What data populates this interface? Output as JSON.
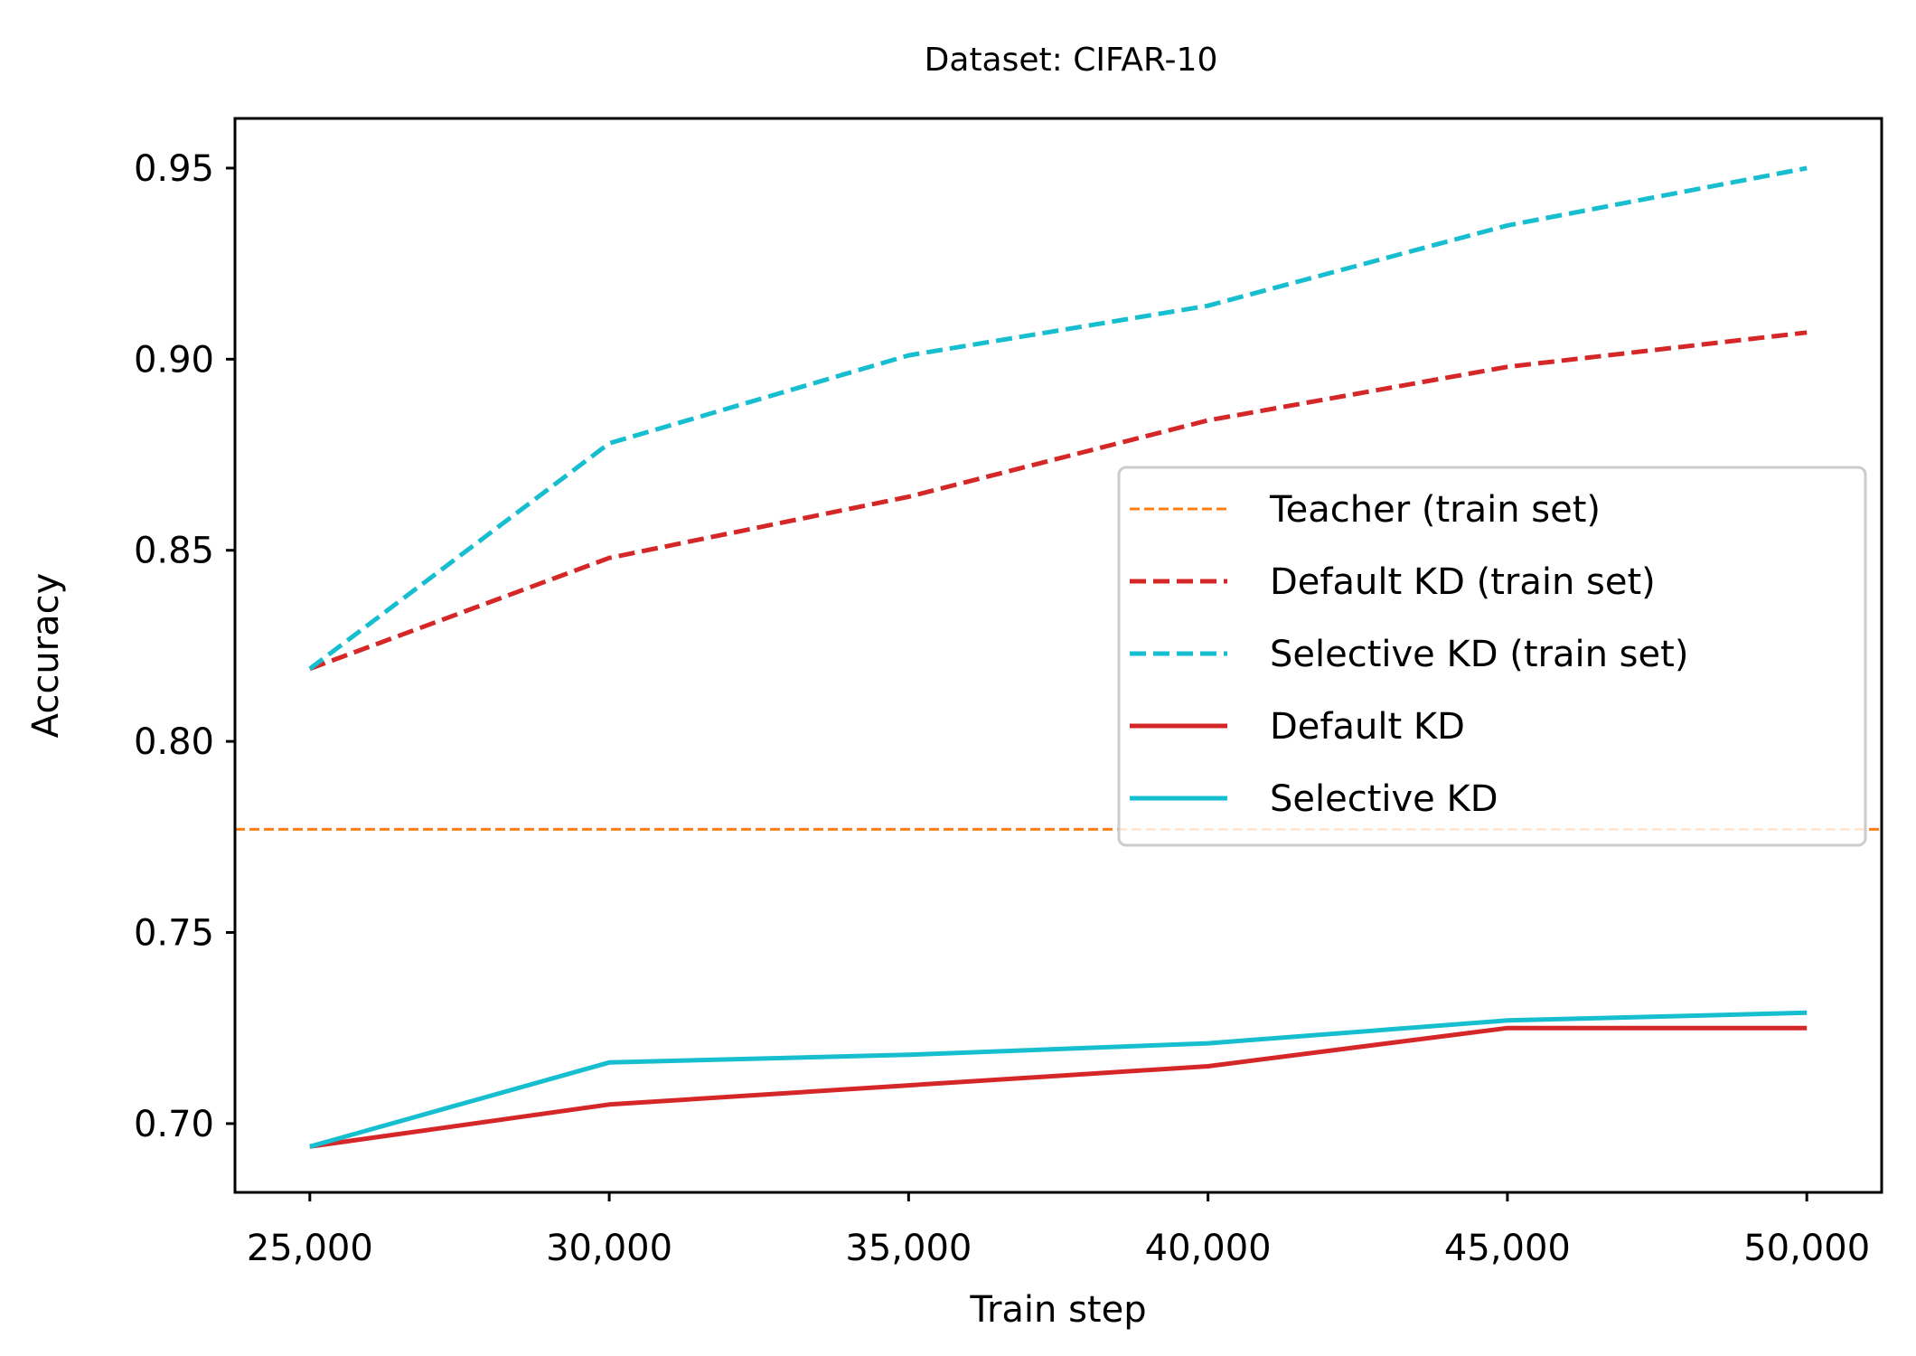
{
  "chart_data": {
    "type": "line",
    "title": "Dataset: CIFAR-10",
    "xlabel": "Train step",
    "ylabel": "Accuracy",
    "x": [
      25000,
      30000,
      35000,
      40000,
      45000,
      50000
    ],
    "xtick_labels": [
      "25,000",
      "30,000",
      "35,000",
      "40,000",
      "45,000",
      "50,000"
    ],
    "yticks": [
      0.7,
      0.75,
      0.8,
      0.85,
      0.9,
      0.95
    ],
    "ytick_labels": [
      "0.70",
      "0.75",
      "0.80",
      "0.85",
      "0.90",
      "0.95"
    ],
    "xlim": [
      23750,
      51250
    ],
    "ylim": [
      0.682,
      0.963
    ],
    "grid": false,
    "legend_position": "center-right",
    "series": [
      {
        "name": "Teacher (train set)",
        "kind": "hline",
        "value": 0.777,
        "color": "#ff7f0e",
        "style": "dashed-thin"
      },
      {
        "name": "Default KD (train set)",
        "values": [
          0.819,
          0.848,
          0.864,
          0.884,
          0.898,
          0.907
        ],
        "color": "#d62728",
        "style": "dashed"
      },
      {
        "name": "Selective KD (train set)",
        "values": [
          0.819,
          0.878,
          0.901,
          0.914,
          0.935,
          0.95
        ],
        "color": "#17becf",
        "style": "dashed"
      },
      {
        "name": "Default KD",
        "values": [
          0.694,
          0.705,
          0.71,
          0.715,
          0.725,
          0.725
        ],
        "color": "#d62728",
        "style": "solid"
      },
      {
        "name": "Selective KD",
        "values": [
          0.694,
          0.716,
          0.718,
          0.721,
          0.727,
          0.729
        ],
        "color": "#17becf",
        "style": "solid"
      }
    ]
  }
}
